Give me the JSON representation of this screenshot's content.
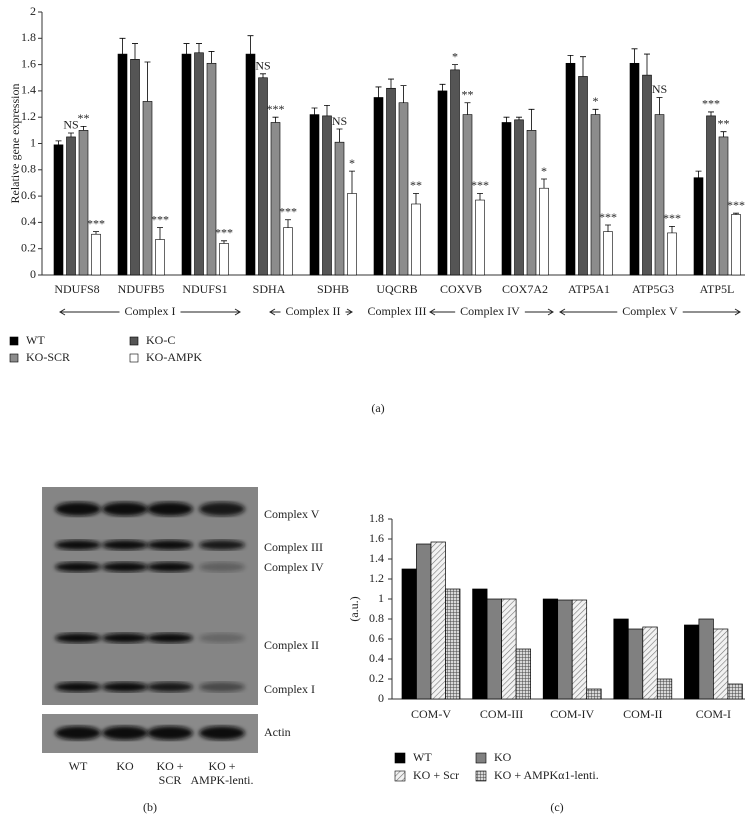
{
  "chart_data": [
    {
      "type": "bar",
      "panel_label": "(a)",
      "y_label": "Relative gene expression",
      "categories": [
        "NDUFS8",
        "NDUFB5",
        "NDUFS1",
        "SDHA",
        "SDHB",
        "UQCRB",
        "COXVB",
        "COX7A2",
        "ATP5A1",
        "ATP5G3",
        "ATP5L"
      ],
      "groups": [
        "Complex I",
        "Complex II",
        "Complex III",
        "Complex IV",
        "Complex V"
      ],
      "ylim": [
        0,
        2
      ],
      "yticks": [
        0,
        0.2,
        0.4,
        0.6,
        0.8,
        1,
        1.2,
        1.4,
        1.6,
        1.8,
        2
      ],
      "series": [
        {
          "name": "WT",
          "color": "#000000",
          "values": [
            0.99,
            1.68,
            1.68,
            1.68,
            1.22,
            1.35,
            1.4,
            1.16,
            1.61,
            1.61,
            0.74
          ],
          "errors": [
            0.03,
            0.12,
            0.08,
            0.14,
            0.05,
            0.08,
            0.05,
            0.04,
            0.06,
            0.11,
            0.05
          ],
          "labels": [
            null,
            null,
            null,
            null,
            null,
            null,
            null,
            null,
            null,
            null,
            null
          ]
        },
        {
          "name": "KO-C",
          "color": "#555555",
          "values": [
            1.05,
            1.64,
            1.69,
            1.5,
            1.21,
            1.42,
            1.56,
            1.18,
            1.51,
            1.52,
            1.21
          ],
          "errors": [
            0.03,
            0.12,
            0.07,
            0.03,
            0.08,
            0.07,
            0.04,
            0.02,
            0.15,
            0.16,
            0.03
          ],
          "labels": [
            "NS",
            null,
            null,
            "NS",
            null,
            null,
            "*",
            null,
            null,
            null,
            "***"
          ]
        },
        {
          "name": "KO-SCR",
          "color": "#8c8c8c",
          "values": [
            1.1,
            1.32,
            1.61,
            1.16,
            1.01,
            1.31,
            1.22,
            1.1,
            1.22,
            1.22,
            1.05
          ],
          "errors": [
            0.03,
            0.3,
            0.09,
            0.04,
            0.1,
            0.13,
            0.09,
            0.16,
            0.04,
            0.13,
            0.04
          ],
          "labels": [
            "**",
            null,
            null,
            "***",
            "NS",
            null,
            "**",
            null,
            "*",
            "NS",
            "**"
          ]
        },
        {
          "name": "KO-AMPK",
          "color": "#ffffff",
          "values": [
            0.31,
            0.27,
            0.24,
            0.36,
            0.62,
            0.54,
            0.57,
            0.66,
            0.33,
            0.32,
            0.46
          ],
          "errors": [
            0.02,
            0.09,
            0.02,
            0.06,
            0.17,
            0.08,
            0.05,
            0.07,
            0.05,
            0.05,
            0.01
          ],
          "labels": [
            "***",
            "***",
            "***",
            "***",
            "*",
            "**",
            "***",
            "*",
            "***",
            "***",
            "***"
          ]
        }
      ]
    },
    {
      "type": "bar",
      "panel_label": "(c)",
      "y_label": "(a.u.)",
      "categories": [
        "COM-V",
        "COM-III",
        "COM-IV",
        "COM-II",
        "COM-I"
      ],
      "ylim": [
        0,
        1.8
      ],
      "yticks": [
        0,
        0.2,
        0.4,
        0.6,
        0.8,
        1,
        1.2,
        1.4,
        1.6,
        1.8
      ],
      "series": [
        {
          "name": "WT",
          "color": "#000000",
          "pattern": "solid",
          "values": [
            1.3,
            1.1,
            1.0,
            0.8,
            0.74
          ]
        },
        {
          "name": "KO",
          "color": "#808080",
          "pattern": "solid",
          "values": [
            1.55,
            1.0,
            0.99,
            0.7,
            0.8
          ]
        },
        {
          "name": "KO + Scr",
          "color": "#d0d0d0",
          "pattern": "diagonal",
          "values": [
            1.57,
            1.0,
            0.99,
            0.72,
            0.7
          ]
        },
        {
          "name": "KO + AMPKα1-lenti.",
          "color": "#707070",
          "pattern": "cross",
          "values": [
            1.1,
            0.5,
            0.1,
            0.2,
            0.15
          ]
        }
      ]
    }
  ],
  "blot": {
    "panel_label": "(b)",
    "bands": [
      "Complex V",
      "Complex III",
      "Complex IV",
      "Complex II",
      "Complex I"
    ],
    "loading_control": "Actin",
    "lanes": [
      [
        "WT"
      ],
      [
        "KO"
      ],
      [
        "KO +",
        "SCR"
      ],
      [
        "KO +",
        "AMPK-lenti."
      ]
    ]
  }
}
